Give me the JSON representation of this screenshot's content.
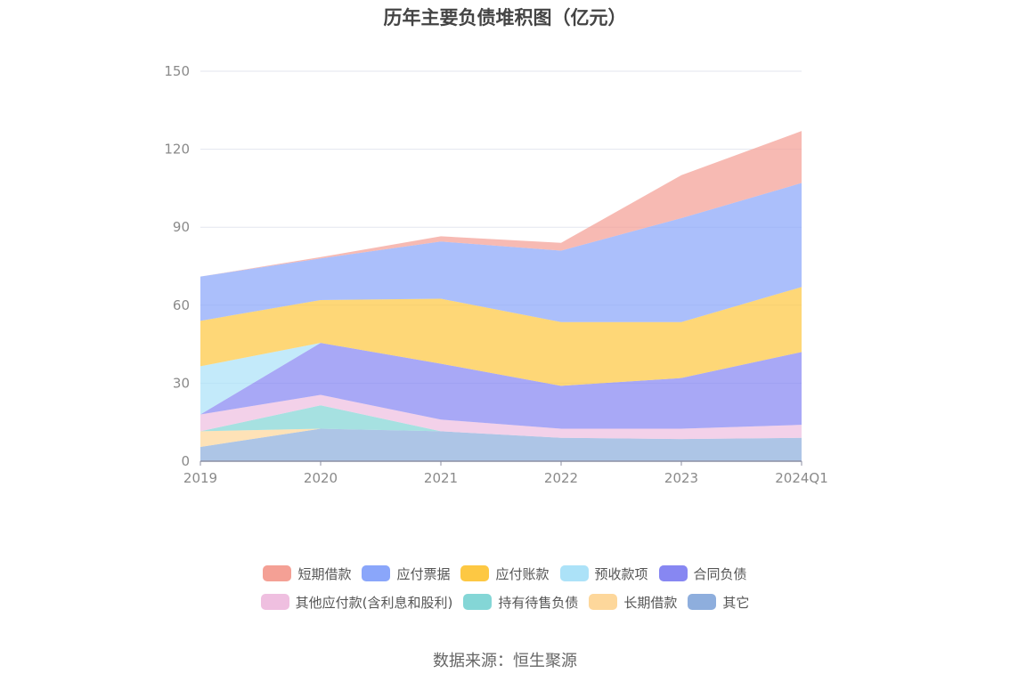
{
  "chart_data": {
    "type": "area",
    "stacked": true,
    "title": "历年主要负债堆积图（亿元）",
    "categories": [
      "2019",
      "2020",
      "2021",
      "2022",
      "2023",
      "2024Q1"
    ],
    "ylim": [
      0,
      150
    ],
    "yticks": [
      "0",
      "30",
      "60",
      "90",
      "120",
      "150"
    ],
    "grid": true,
    "legend_position": "bottom",
    "series": [
      {
        "name": "其它",
        "color": "#8eaedd",
        "values": [
          5.5,
          12.5,
          11.5,
          9.0,
          8.5,
          9.0
        ]
      },
      {
        "name": "长期借款",
        "color": "#fdd79b",
        "values": [
          6.0,
          0.0,
          0.0,
          0.0,
          0.0,
          0.0
        ]
      },
      {
        "name": "持有待售负债",
        "color": "#84d6d6",
        "values": [
          0.0,
          9.0,
          0.0,
          0.0,
          0.0,
          0.0
        ]
      },
      {
        "name": "其他应付款(含利息和股利)",
        "color": "#efbfe0",
        "values": [
          6.5,
          4.0,
          4.5,
          3.5,
          4.0,
          5.0
        ]
      },
      {
        "name": "合同负债",
        "color": "#8787f2",
        "values": [
          0.0,
          20.0,
          21.5,
          16.5,
          19.5,
          28.0
        ]
      },
      {
        "name": "预收款项",
        "color": "#ace2f8",
        "values": [
          18.5,
          0.0,
          0.0,
          0.0,
          0.0,
          0.0
        ]
      },
      {
        "name": "应付账款",
        "color": "#fdc843",
        "values": [
          17.5,
          16.5,
          25.0,
          24.5,
          21.5,
          25.0
        ]
      },
      {
        "name": "应付票据",
        "color": "#8aa6fa",
        "values": [
          17.0,
          16.0,
          22.0,
          27.5,
          40.0,
          40.0
        ]
      },
      {
        "name": "短期借款",
        "color": "#f4a095",
        "values": [
          0.0,
          0.5,
          2.0,
          3.0,
          16.5,
          20.0
        ]
      }
    ],
    "legend_order": [
      "短期借款",
      "应付票据",
      "应付账款",
      "预收款项",
      "合同负债",
      "其他应付款(含利息和股利)",
      "持有待售负债",
      "长期借款",
      "其它"
    ]
  },
  "source": "数据来源：恒生聚源"
}
